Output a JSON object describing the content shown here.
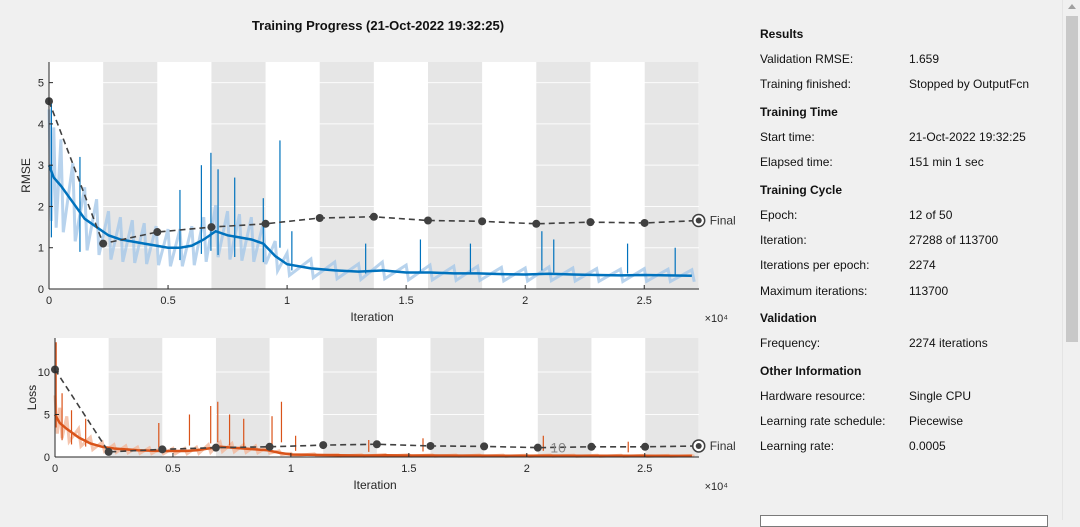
{
  "title": "Training Progress (21-Oct-2022 19:32:25)",
  "colors": {
    "rmse_line": "#0072bd",
    "rmse_smooth": "#a6c8e8",
    "loss_line": "#d95319",
    "loss_smooth": "#f2b79a",
    "validation": "#404040",
    "epoch_band": "#e6e6e6"
  },
  "icons": {
    "final_marker": "circle-dot-icon",
    "scroll_up": "chevron-up-icon"
  },
  "chart_data": [
    {
      "type": "line",
      "xlabel": "Iteration",
      "ylabel": "RMSE",
      "x_exponent": "×10⁴",
      "xlim": [
        0,
        2.73
      ],
      "ylim": [
        0,
        5.5
      ],
      "xticks": [
        "0",
        "0.5",
        "1",
        "1.5",
        "2",
        "2.5"
      ],
      "xtick_values": [
        0,
        0.5,
        1,
        1.5,
        2,
        2.5
      ],
      "yticks": [
        "0",
        "1",
        "2",
        "3",
        "4",
        "5"
      ],
      "ytick_values": [
        0,
        1,
        2,
        3,
        4,
        5
      ],
      "epoch_bands": [
        [
          0.2274,
          0.4548
        ],
        [
          0.6822,
          0.9096
        ],
        [
          1.137,
          1.3644
        ],
        [
          1.5918,
          1.8192
        ],
        [
          2.0466,
          2.274
        ],
        [
          2.5014,
          2.7288
        ]
      ],
      "series": [
        {
          "kind": "training",
          "x": [
            0,
            0.02,
            0.05,
            0.1,
            0.15,
            0.2,
            0.25,
            0.3,
            0.35,
            0.4,
            0.45,
            0.5,
            0.55,
            0.6,
            0.65,
            0.7,
            0.75,
            0.8,
            0.85,
            0.9,
            0.95,
            1.0,
            1.1,
            1.2,
            1.3,
            1.4,
            1.5,
            1.6,
            1.7,
            1.8,
            1.9,
            2.0,
            2.1,
            2.2,
            2.3,
            2.4,
            2.5,
            2.6,
            2.7
          ],
          "values": [
            3.0,
            2.7,
            2.5,
            2.1,
            1.7,
            1.5,
            1.3,
            1.2,
            1.15,
            1.1,
            1.05,
            1.0,
            1.0,
            1.05,
            1.2,
            1.4,
            1.3,
            1.25,
            1.2,
            1.1,
            0.8,
            0.6,
            0.5,
            0.45,
            0.42,
            0.45,
            0.4,
            0.4,
            0.38,
            0.38,
            0.36,
            0.35,
            0.37,
            0.35,
            0.34,
            0.33,
            0.34,
            0.33,
            0.32
          ],
          "spikes": [
            [
              0.01,
              4.6
            ],
            [
              0.13,
              3.2
            ],
            [
              0.55,
              2.4
            ],
            [
              0.64,
              3.0
            ],
            [
              0.68,
              3.3
            ],
            [
              0.71,
              2.9
            ],
            [
              0.78,
              2.7
            ],
            [
              0.9,
              2.2
            ],
            [
              0.97,
              3.6
            ],
            [
              1.02,
              1.4
            ],
            [
              1.33,
              1.1
            ],
            [
              1.56,
              1.2
            ],
            [
              1.77,
              1.1
            ],
            [
              2.07,
              1.4
            ],
            [
              2.12,
              1.2
            ],
            [
              2.43,
              1.1
            ],
            [
              2.63,
              1.0
            ]
          ]
        },
        {
          "kind": "validation",
          "x": [
            0,
            0.2274,
            0.4548,
            0.6822,
            0.9096,
            1.137,
            1.3644,
            1.5918,
            1.8192,
            2.0466,
            2.274,
            2.5014,
            2.7288
          ],
          "values": [
            4.55,
            1.1,
            1.38,
            1.5,
            1.58,
            1.72,
            1.75,
            1.66,
            1.64,
            1.58,
            1.62,
            1.6,
            1.659
          ]
        }
      ],
      "final_label": "Final"
    },
    {
      "type": "line",
      "xlabel": "Iteration",
      "ylabel": "Loss",
      "x_exponent": "×10⁴",
      "xlim": [
        0,
        2.73
      ],
      "ylim": [
        0,
        14
      ],
      "xticks": [
        "0",
        "0.5",
        "1",
        "1.5",
        "2",
        "2.5"
      ],
      "xtick_values": [
        0,
        0.5,
        1,
        1.5,
        2,
        2.5
      ],
      "yticks": [
        "0",
        "5",
        "10"
      ],
      "ytick_values": [
        0,
        5,
        10
      ],
      "epoch_bands": [
        [
          0.2274,
          0.4548
        ],
        [
          0.6822,
          0.9096
        ],
        [
          1.137,
          1.3644
        ],
        [
          1.5918,
          1.8192
        ],
        [
          2.0466,
          2.274
        ],
        [
          2.5014,
          2.7288
        ]
      ],
      "series": [
        {
          "kind": "training",
          "x": [
            0,
            0.02,
            0.05,
            0.1,
            0.15,
            0.2,
            0.25,
            0.3,
            0.35,
            0.4,
            0.45,
            0.5,
            0.55,
            0.6,
            0.65,
            0.7,
            0.75,
            0.8,
            0.85,
            0.9,
            0.95,
            1.0,
            1.1,
            1.2,
            1.3,
            1.4,
            1.5,
            1.6,
            1.7,
            1.8,
            1.9,
            2.0,
            2.1,
            2.2,
            2.3,
            2.4,
            2.5,
            2.6,
            2.7
          ],
          "values": [
            5.0,
            4.0,
            3.3,
            2.3,
            1.6,
            1.2,
            1.0,
            0.9,
            0.8,
            0.75,
            0.7,
            0.7,
            0.7,
            0.8,
            1.0,
            1.2,
            1.1,
            1.0,
            0.9,
            0.8,
            0.5,
            0.3,
            0.25,
            0.2,
            0.18,
            0.2,
            0.18,
            0.17,
            0.16,
            0.16,
            0.15,
            0.15,
            0.16,
            0.15,
            0.14,
            0.14,
            0.14,
            0.13,
            0.13
          ],
          "spikes": [
            [
              0.005,
              13.5
            ],
            [
              0.03,
              7.5
            ],
            [
              0.07,
              5.5
            ],
            [
              0.13,
              4.5
            ],
            [
              0.44,
              4.0
            ],
            [
              0.57,
              5.0
            ],
            [
              0.66,
              6.0
            ],
            [
              0.69,
              6.5
            ],
            [
              0.74,
              5.0
            ],
            [
              0.8,
              4.5
            ],
            [
              0.92,
              4.8
            ],
            [
              0.96,
              6.5
            ],
            [
              1.02,
              2.5
            ],
            [
              1.33,
              2.0
            ],
            [
              1.56,
              2.2
            ],
            [
              2.07,
              2.5
            ],
            [
              2.43,
              1.8
            ]
          ]
        },
        {
          "kind": "validation",
          "x": [
            0,
            0.2274,
            0.4548,
            0.6822,
            0.9096,
            1.137,
            1.3644,
            1.5918,
            1.8192,
            2.0466,
            2.274,
            2.5014,
            2.7288
          ],
          "values": [
            10.3,
            0.6,
            0.9,
            1.1,
            1.2,
            1.4,
            1.5,
            1.3,
            1.25,
            1.1,
            1.2,
            1.2,
            1.3
          ]
        }
      ],
      "final_label": "Final",
      "annotation": "10"
    }
  ],
  "panel": {
    "results": {
      "heading": "Results",
      "validation_rmse_label": "Validation RMSE:",
      "validation_rmse": "1.659",
      "training_finished_label": "Training finished:",
      "training_finished": "Stopped by OutputFcn"
    },
    "training_time": {
      "heading": "Training Time",
      "start_time_label": "Start time:",
      "start_time": "21-Oct-2022 19:32:25",
      "elapsed_label": "Elapsed time:",
      "elapsed": "151 min 1 sec"
    },
    "training_cycle": {
      "heading": "Training Cycle",
      "epoch_label": "Epoch:",
      "epoch": "12 of 50",
      "iteration_label": "Iteration:",
      "iteration": "27288 of 113700",
      "iterations_per_epoch_label": "Iterations per epoch:",
      "iterations_per_epoch": "2274",
      "max_iterations_label": "Maximum iterations:",
      "max_iterations": "113700"
    },
    "validation": {
      "heading": "Validation",
      "frequency_label": "Frequency:",
      "frequency": "2274 iterations"
    },
    "other": {
      "heading": "Other Information",
      "hardware_label": "Hardware resource:",
      "hardware": "Single CPU",
      "lr_schedule_label": "Learning rate schedule:",
      "lr_schedule": "Piecewise",
      "lr_label": "Learning rate:",
      "lr": "0.0005"
    }
  }
}
